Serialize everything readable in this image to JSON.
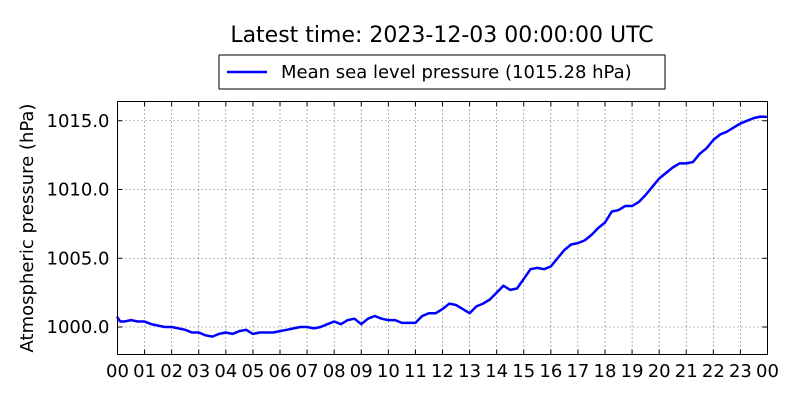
{
  "chart_data": {
    "type": "line",
    "title": "Latest time: 2023-12-03 00:00:00 UTC",
    "ylabel": "Atmospheric pressure (hPa)",
    "xlabel": "",
    "x_ticks": [
      "00",
      "01",
      "02",
      "03",
      "04",
      "05",
      "06",
      "07",
      "08",
      "09",
      "10",
      "11",
      "12",
      "13",
      "14",
      "15",
      "16",
      "17",
      "18",
      "19",
      "20",
      "21",
      "22",
      "23",
      "00"
    ],
    "y_ticks": [
      "1000.0",
      "1005.0",
      "1010.0",
      "1015.0"
    ],
    "xlim": [
      0,
      24
    ],
    "ylim": [
      998.0,
      1016.4
    ],
    "grid": true,
    "legend_position": "top-center",
    "series": [
      {
        "name": "Mean sea level pressure (1015.28 hPa)",
        "color": "#0000ff",
        "x": [
          0,
          0.1,
          0.25,
          0.5,
          0.75,
          1.0,
          1.25,
          1.5,
          1.75,
          2.0,
          2.25,
          2.5,
          2.75,
          3.0,
          3.25,
          3.5,
          3.75,
          4.0,
          4.25,
          4.5,
          4.75,
          5.0,
          5.25,
          5.5,
          5.75,
          6.0,
          6.25,
          6.5,
          6.75,
          7.0,
          7.25,
          7.5,
          7.75,
          8.0,
          8.25,
          8.5,
          8.75,
          9.0,
          9.25,
          9.5,
          9.75,
          10.0,
          10.25,
          10.5,
          10.75,
          11.0,
          11.25,
          11.5,
          11.75,
          12.0,
          12.25,
          12.5,
          12.75,
          13.0,
          13.25,
          13.5,
          13.75,
          14.0,
          14.25,
          14.5,
          14.75,
          15.0,
          15.25,
          15.5,
          15.75,
          16.0,
          16.25,
          16.5,
          16.75,
          17.0,
          17.25,
          17.5,
          17.75,
          18.0,
          18.25,
          18.5,
          18.75,
          19.0,
          19.25,
          19.5,
          19.75,
          20.0,
          20.25,
          20.5,
          20.75,
          21.0,
          21.25,
          21.5,
          21.75,
          22.0,
          22.25,
          22.5,
          22.75,
          23.0,
          23.25,
          23.5,
          23.75,
          23.95
        ],
        "values": [
          1000.7,
          1000.4,
          1000.4,
          1000.5,
          1000.4,
          1000.4,
          1000.2,
          1000.1,
          1000.0,
          1000.0,
          999.9,
          999.8,
          999.6,
          999.6,
          999.4,
          999.3,
          999.5,
          999.6,
          999.5,
          999.7,
          999.8,
          999.5,
          999.6,
          999.6,
          999.6,
          999.7,
          999.8,
          999.9,
          1000.0,
          1000.0,
          999.9,
          1000.0,
          1000.2,
          1000.4,
          1000.2,
          1000.5,
          1000.6,
          1000.2,
          1000.6,
          1000.8,
          1000.6,
          1000.5,
          1000.5,
          1000.3,
          1000.3,
          1000.3,
          1000.8,
          1001.0,
          1001.0,
          1001.3,
          1001.7,
          1001.6,
          1001.3,
          1001.0,
          1001.5,
          1001.7,
          1002.0,
          1002.5,
          1003.0,
          1002.7,
          1002.8,
          1003.5,
          1004.2,
          1004.3,
          1004.2,
          1004.4,
          1005.0,
          1005.6,
          1006.0,
          1006.1,
          1006.3,
          1006.7,
          1007.2,
          1007.6,
          1008.4,
          1008.5,
          1008.8,
          1008.8,
          1009.1,
          1009.6,
          1010.2,
          1010.8,
          1011.2,
          1011.6,
          1011.9,
          1011.9,
          1012.0,
          1012.6,
          1013.0,
          1013.6,
          1014.0,
          1014.2,
          1014.5,
          1014.8,
          1015.0,
          1015.2,
          1015.3,
          1015.28
        ]
      }
    ]
  }
}
